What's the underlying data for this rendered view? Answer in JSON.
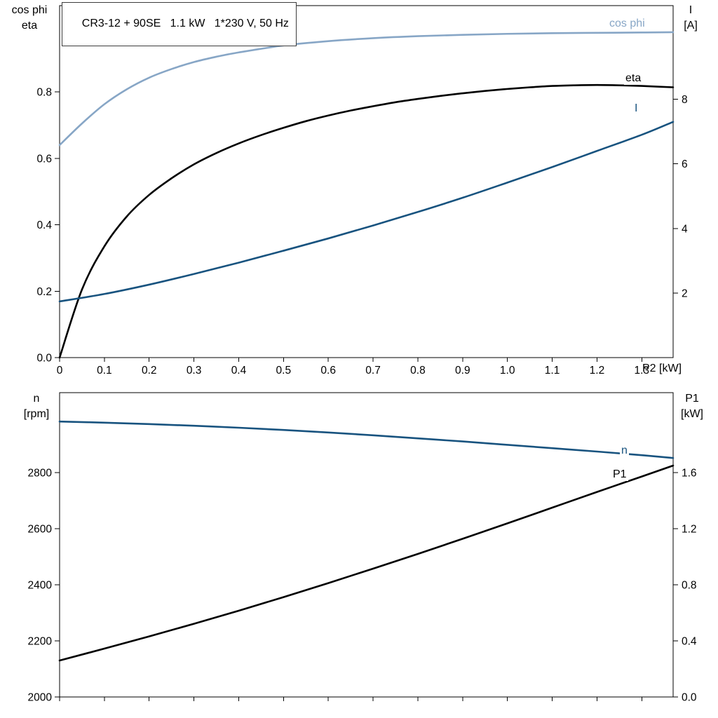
{
  "title_box": {
    "text": "CR3-12 + 90SE   1.1 kW   1*230 V, 50 Hz"
  },
  "colors": {
    "light_blue": "#87a6c6",
    "dark_blue": "#18537f",
    "black": "#000000"
  },
  "labels": {
    "top_left": [
      "cos phi",
      "eta"
    ],
    "top_right": [
      "I",
      "[A]"
    ],
    "bottom_left": [
      "n",
      "[rpm]"
    ],
    "bottom_right": [
      "P1",
      "[kW]"
    ],
    "x_axis": "P2 [kW]",
    "curves": {
      "cos_phi": "cos phi",
      "eta": "eta",
      "current": "I",
      "speed": "n",
      "power": "P1"
    }
  },
  "chart_data": [
    {
      "type": "line",
      "title": "CR3-12 + 90SE   1.1 kW   1*230 V, 50 Hz",
      "grid": false,
      "legend_position": "curve-end-labels",
      "x_axis": {
        "label": "P2 [kW]",
        "min": 0,
        "max": 1.37,
        "ticks": [
          0,
          0.1,
          0.2,
          0.3,
          0.4,
          0.5,
          0.6,
          0.7,
          0.8,
          0.9,
          1.0,
          1.1,
          1.2,
          1.3
        ],
        "tick_labels": [
          "0",
          "0.1",
          "0.2",
          "0.3",
          "0.4",
          "0.5",
          "0.6",
          "0.7",
          "0.8",
          "0.9",
          "1.0",
          "1.1",
          "1.2",
          "1.3"
        ],
        "show_tick_labels": true
      },
      "left_axis": {
        "label": "cos phi / eta",
        "min": 0,
        "max": 1.06,
        "ticks": [
          0,
          0.2,
          0.4,
          0.6,
          0.8
        ],
        "tick_labels": [
          "0.0",
          "0.2",
          "0.4",
          "0.6",
          "0.8"
        ]
      },
      "right_axis": {
        "label": "I [A]",
        "min": 0,
        "max": 10.9,
        "ticks": [
          2,
          4,
          6,
          8
        ],
        "tick_labels": [
          "2",
          "4",
          "6",
          "8"
        ]
      },
      "series": [
        {
          "name": "cos phi",
          "axis": "left",
          "color": "#87a6c6",
          "width": 2.6,
          "points": [
            [
              0,
              0.64
            ],
            [
              0.05,
              0.705
            ],
            [
              0.1,
              0.763
            ],
            [
              0.15,
              0.808
            ],
            [
              0.2,
              0.843
            ],
            [
              0.25,
              0.869
            ],
            [
              0.3,
              0.89
            ],
            [
              0.35,
              0.906
            ],
            [
              0.4,
              0.919
            ],
            [
              0.5,
              0.94
            ],
            [
              0.6,
              0.953
            ],
            [
              0.7,
              0.962
            ],
            [
              0.8,
              0.968
            ],
            [
              0.9,
              0.972
            ],
            [
              1.0,
              0.975
            ],
            [
              1.1,
              0.977
            ],
            [
              1.2,
              0.978
            ],
            [
              1.3,
              0.979
            ],
            [
              1.37,
              0.98
            ]
          ]
        },
        {
          "name": "eta",
          "axis": "left",
          "color": "#000000",
          "width": 2.6,
          "points": [
            [
              0,
              0
            ],
            [
              0.05,
              0.205
            ],
            [
              0.1,
              0.335
            ],
            [
              0.15,
              0.425
            ],
            [
              0.2,
              0.49
            ],
            [
              0.25,
              0.54
            ],
            [
              0.3,
              0.582
            ],
            [
              0.35,
              0.616
            ],
            [
              0.4,
              0.645
            ],
            [
              0.45,
              0.67
            ],
            [
              0.5,
              0.692
            ],
            [
              0.55,
              0.712
            ],
            [
              0.6,
              0.729
            ],
            [
              0.65,
              0.744
            ],
            [
              0.7,
              0.757
            ],
            [
              0.75,
              0.769
            ],
            [
              0.8,
              0.779
            ],
            [
              0.85,
              0.788
            ],
            [
              0.9,
              0.796
            ],
            [
              0.95,
              0.803
            ],
            [
              1.0,
              0.809
            ],
            [
              1.05,
              0.814
            ],
            [
              1.1,
              0.818
            ],
            [
              1.15,
              0.82
            ],
            [
              1.2,
              0.821
            ],
            [
              1.25,
              0.82
            ],
            [
              1.3,
              0.818
            ],
            [
              1.37,
              0.814
            ]
          ]
        },
        {
          "name": "I",
          "axis": "right",
          "color": "#18537f",
          "width": 2.6,
          "points": [
            [
              0,
              1.74
            ],
            [
              0.1,
              1.97
            ],
            [
              0.2,
              2.26
            ],
            [
              0.3,
              2.59
            ],
            [
              0.4,
              2.94
            ],
            [
              0.5,
              3.31
            ],
            [
              0.6,
              3.69
            ],
            [
              0.7,
              4.09
            ],
            [
              0.8,
              4.51
            ],
            [
              0.9,
              4.95
            ],
            [
              1.0,
              5.42
            ],
            [
              1.1,
              5.9
            ],
            [
              1.2,
              6.4
            ],
            [
              1.3,
              6.9
            ],
            [
              1.37,
              7.3
            ]
          ]
        }
      ]
    },
    {
      "type": "line",
      "title": "",
      "grid": false,
      "legend_position": "curve-end-labels",
      "x_axis": {
        "label": "",
        "min": 0,
        "max": 1.37,
        "ticks": [
          0,
          0.1,
          0.2,
          0.3,
          0.4,
          0.5,
          0.6,
          0.7,
          0.8,
          0.9,
          1.0,
          1.1,
          1.2,
          1.3
        ],
        "tick_labels": [
          "",
          "",
          "",
          "",
          "",
          "",
          "",
          "",
          "",
          "",
          "",
          "",
          "",
          ""
        ],
        "show_tick_labels": false
      },
      "left_axis": {
        "label": "n [rpm]",
        "min": 2000,
        "max": 3085,
        "ticks": [
          2000,
          2200,
          2400,
          2600,
          2800
        ],
        "tick_labels": [
          "2000",
          "2200",
          "2400",
          "2600",
          "2800"
        ]
      },
      "right_axis": {
        "label": "P1 [kW]",
        "min": 0,
        "max": 2.17,
        "ticks": [
          0,
          0.4,
          0.8,
          1.2,
          1.6
        ],
        "tick_labels": [
          "0.0",
          "0.4",
          "0.8",
          "1.2",
          "1.6"
        ]
      },
      "series": [
        {
          "name": "n",
          "axis": "left",
          "color": "#18537f",
          "width": 2.6,
          "points": [
            [
              0,
              2982
            ],
            [
              0.1,
              2978
            ],
            [
              0.2,
              2973
            ],
            [
              0.3,
              2967
            ],
            [
              0.4,
              2960
            ],
            [
              0.5,
              2952
            ],
            [
              0.6,
              2943
            ],
            [
              0.7,
              2933
            ],
            [
              0.8,
              2922
            ],
            [
              0.9,
              2911
            ],
            [
              1.0,
              2899
            ],
            [
              1.1,
              2887
            ],
            [
              1.2,
              2875
            ],
            [
              1.3,
              2862
            ],
            [
              1.37,
              2852
            ]
          ]
        },
        {
          "name": "P1",
          "axis": "right",
          "color": "#000000",
          "width": 2.6,
          "points": [
            [
              0,
              0.26
            ],
            [
              0.1,
              0.345
            ],
            [
              0.2,
              0.432
            ],
            [
              0.3,
              0.522
            ],
            [
              0.4,
              0.615
            ],
            [
              0.5,
              0.712
            ],
            [
              0.6,
              0.812
            ],
            [
              0.7,
              0.915
            ],
            [
              0.8,
              1.02
            ],
            [
              0.9,
              1.128
            ],
            [
              1.0,
              1.238
            ],
            [
              1.1,
              1.35
            ],
            [
              1.2,
              1.462
            ],
            [
              1.3,
              1.572
            ],
            [
              1.37,
              1.65
            ]
          ]
        }
      ]
    }
  ]
}
